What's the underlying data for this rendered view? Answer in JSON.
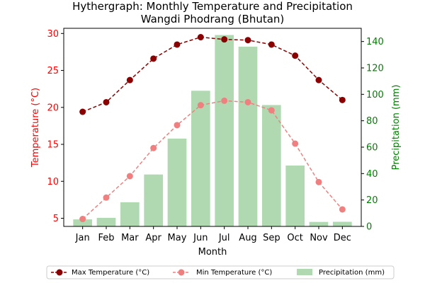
{
  "chart_data": {
    "type": "bar+line",
    "title_line1": "Hythergraph: Monthly Temperature and Precipitation",
    "title_line2": "Wangdi Phodrang (Bhutan)",
    "xlabel": "Month",
    "ylabel_left": "Temperature (°C)",
    "ylabel_right": "Precipitation (mm)",
    "categories": [
      "Jan",
      "Feb",
      "Mar",
      "Apr",
      "May",
      "Jun",
      "Jul",
      "Aug",
      "Sep",
      "Oct",
      "Nov",
      "Dec"
    ],
    "ylim_left": [
      3.9,
      30.7
    ],
    "ylim_right": [
      0,
      150
    ],
    "yticks_left": [
      5,
      10,
      15,
      20,
      25,
      30
    ],
    "yticks_right": [
      0,
      20,
      40,
      60,
      80,
      100,
      120,
      140
    ],
    "series": [
      {
        "name": "Max Temperature (°C)",
        "kind": "line",
        "axis": "left",
        "color": "#8b0000",
        "values": [
          19.4,
          20.7,
          23.7,
          26.6,
          28.5,
          29.5,
          29.2,
          29.1,
          28.5,
          27.0,
          23.7,
          21.0
        ]
      },
      {
        "name": "Min Temperature (°C)",
        "kind": "line",
        "axis": "left",
        "color": "#f08080",
        "values": [
          4.9,
          7.8,
          10.7,
          14.5,
          17.6,
          20.3,
          20.9,
          20.7,
          19.6,
          15.1,
          9.9,
          6.2
        ]
      },
      {
        "name": "Precipitation (mm)",
        "kind": "bar",
        "axis": "right",
        "color": "#b0d9b1",
        "values": [
          5.3,
          6.5,
          18.3,
          39.3,
          66.5,
          102.7,
          144.9,
          136.1,
          91.9,
          46.1,
          3.4,
          3.5
        ]
      }
    ],
    "legend_position": "bottom",
    "grid": false
  }
}
